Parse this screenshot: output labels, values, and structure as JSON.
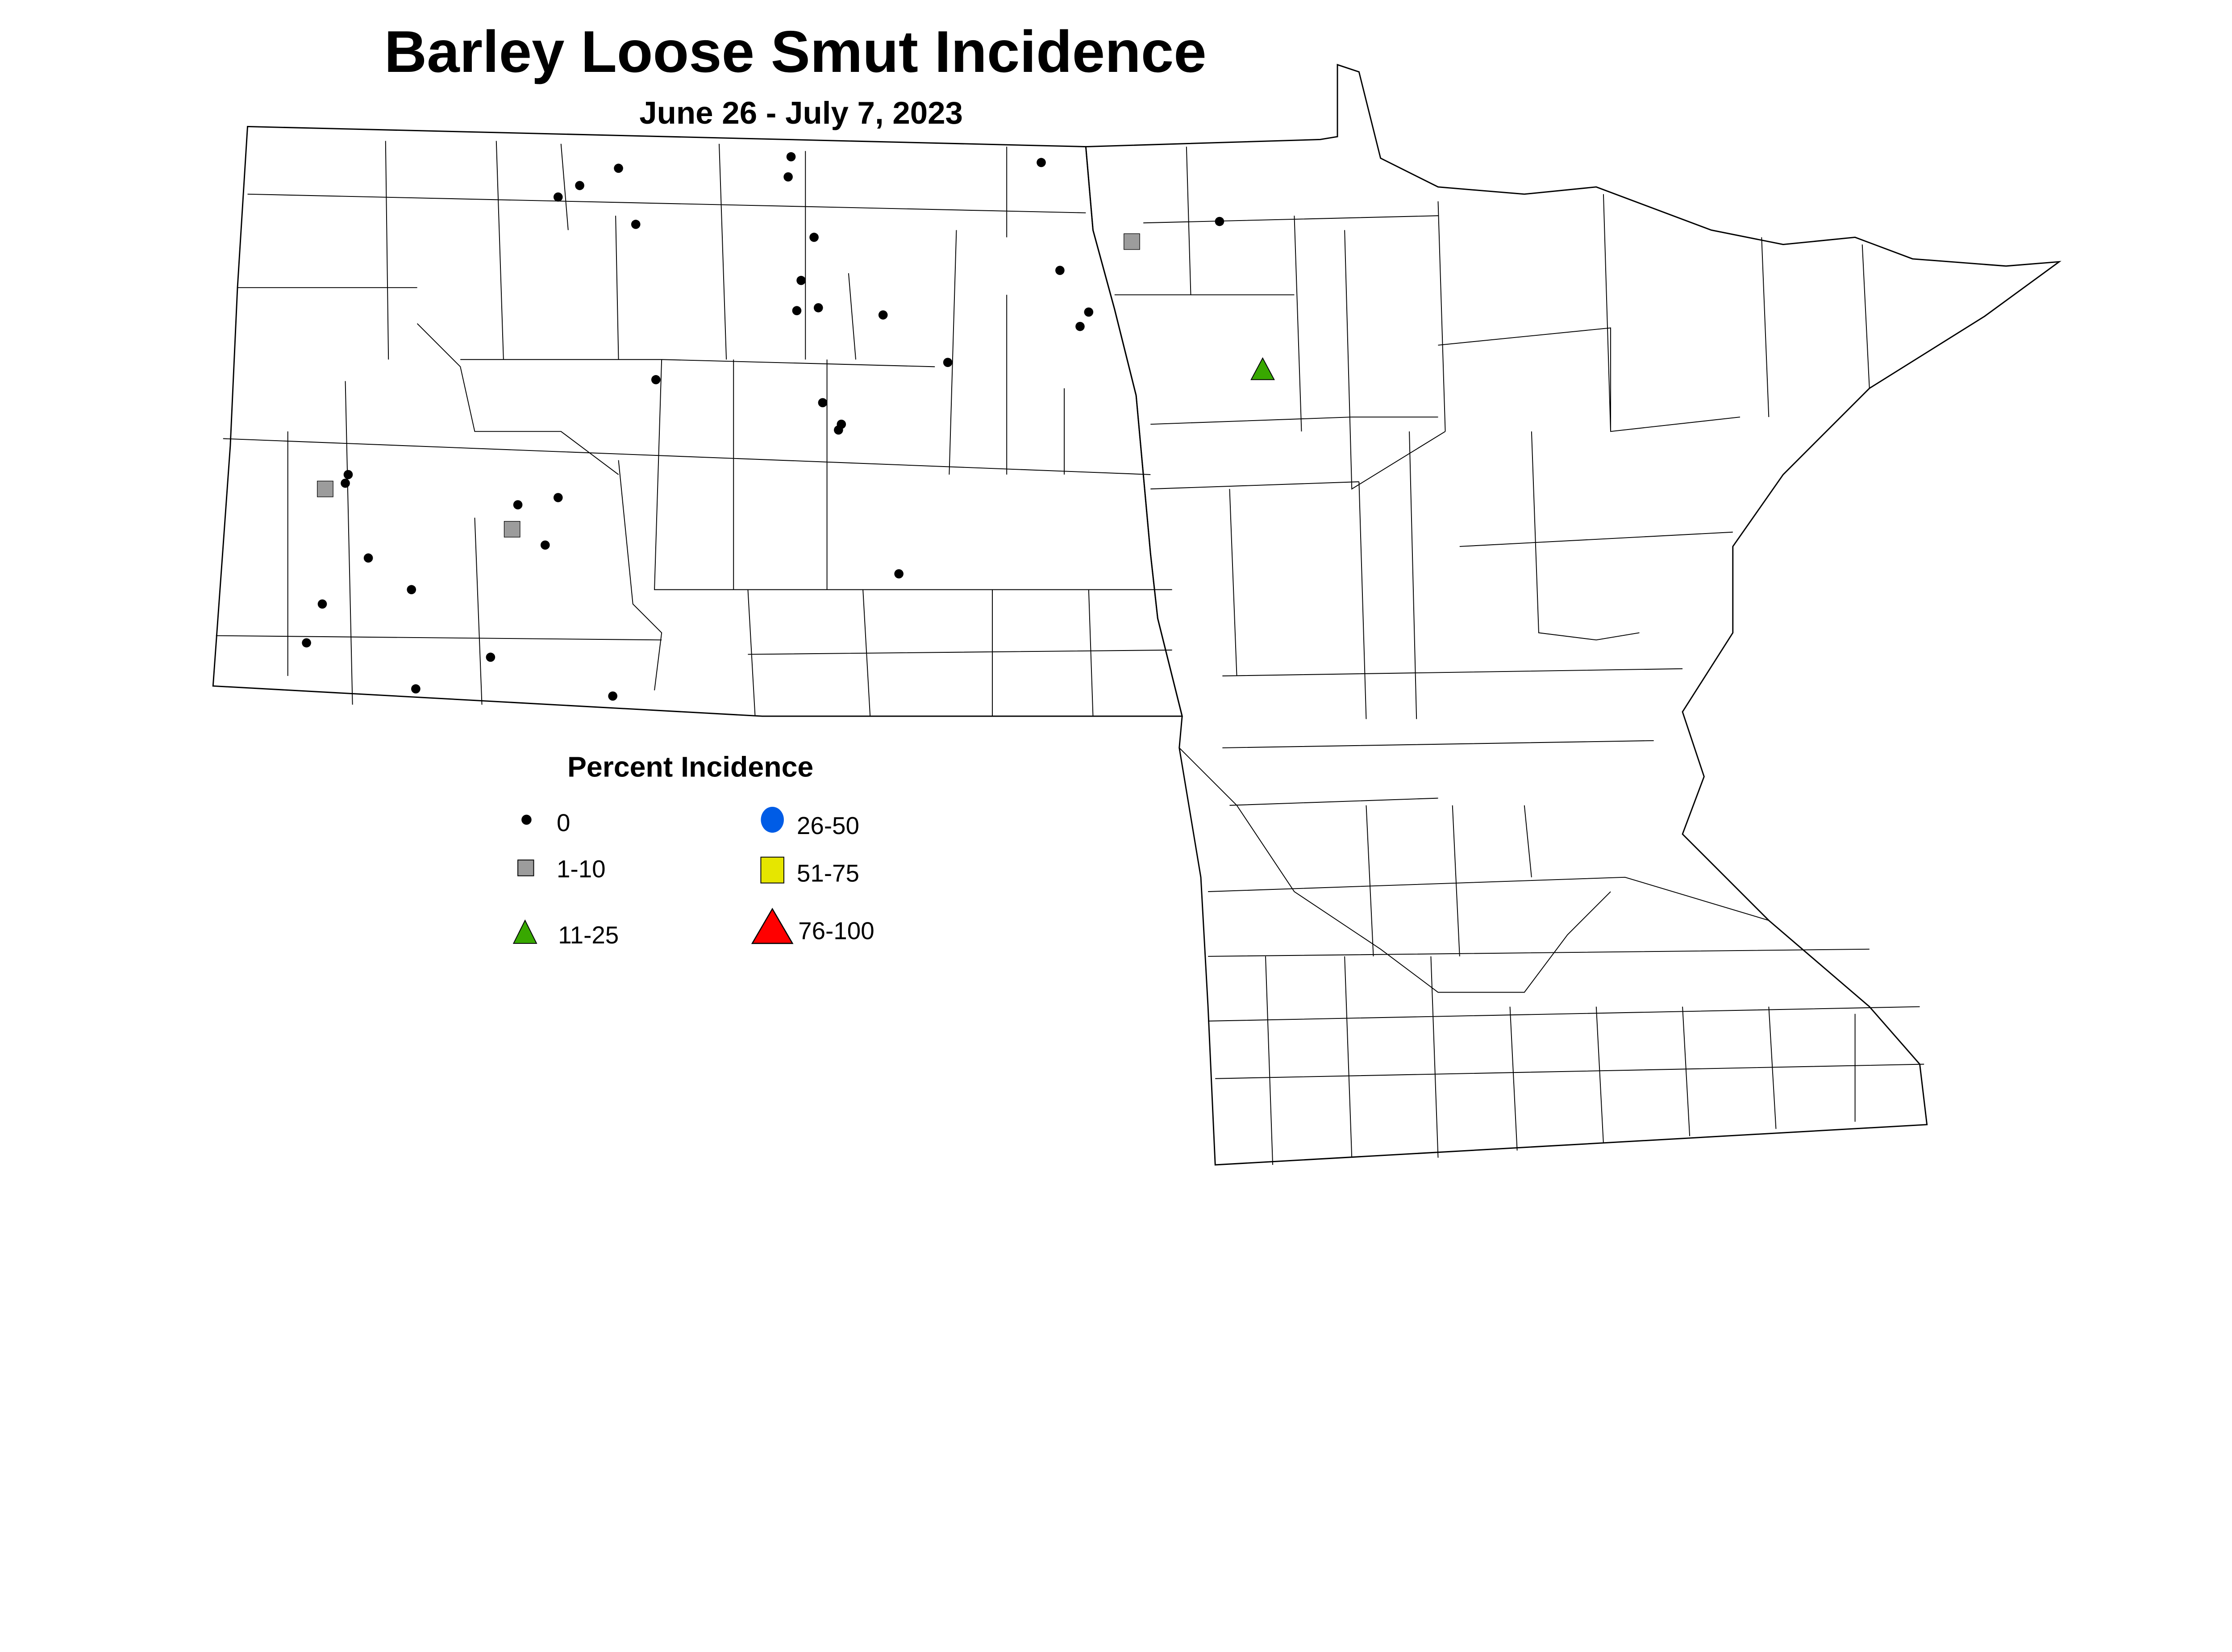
{
  "title": "Barley Loose Smut Incidence",
  "subtitle": "June 26 - July 7, 2023",
  "legend": {
    "title": "Percent Incidence",
    "items": [
      {
        "label": "0",
        "shape": "dot",
        "color": "#000000"
      },
      {
        "label": "1-10",
        "shape": "square",
        "color": "#9c9c9c"
      },
      {
        "label": "11-25",
        "shape": "triangle",
        "color": "#38a800"
      },
      {
        "label": "26-50",
        "shape": "circle",
        "color": "#005ce6"
      },
      {
        "label": "51-75",
        "shape": "square",
        "color": "#e6e600"
      },
      {
        "label": "76-100",
        "shape": "triangle",
        "color": "#ff0000"
      }
    ]
  },
  "observations": {
    "0": 34,
    "1-10": 3,
    "11-25": 1,
    "26-50": 0,
    "51-75": 0,
    "76-100": 0
  }
}
